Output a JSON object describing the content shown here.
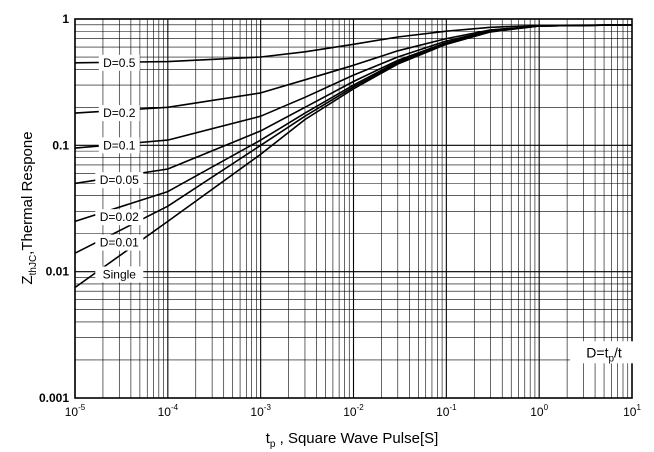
{
  "chart_data": {
    "type": "line",
    "title": "",
    "xlabel_main": "t",
    "xlabel_sub": "p",
    "xlabel_rest": " ,  Square Wave Pulse[S]",
    "ylabel_main": "Z",
    "ylabel_sub": "thJC",
    "ylabel_rest": ",Thermal Respone",
    "xscale": "log",
    "yscale": "log",
    "xlim": [
      1e-05,
      10
    ],
    "ylim": [
      0.001,
      1
    ],
    "grid": true,
    "x_ticks": [
      {
        "base": "10",
        "exp": "-5",
        "value": 1e-05
      },
      {
        "base": "10",
        "exp": "-4",
        "value": 0.0001
      },
      {
        "base": "10",
        "exp": "-3",
        "value": 0.001
      },
      {
        "base": "10",
        "exp": "-2",
        "value": 0.01
      },
      {
        "base": "10",
        "exp": "-1",
        "value": 0.1
      },
      {
        "base": "10",
        "exp": "0",
        "value": 1
      },
      {
        "base": "10",
        "exp": "1",
        "value": 10
      }
    ],
    "y_ticks": [
      {
        "label": "1",
        "value": 1
      },
      {
        "label": "0.1",
        "value": 0.1
      },
      {
        "label": "0.01",
        "value": 0.01
      },
      {
        "label": "0.001",
        "value": 0.001
      }
    ],
    "annotation": {
      "main": "D=t",
      "sub": "p",
      "rest": "/t",
      "x": 5,
      "y": 0.0023
    },
    "series": [
      {
        "name": "D=0.5",
        "label_at": {
          "x": 3e-05,
          "y": 0.45
        },
        "points": [
          [
            1e-05,
            0.45
          ],
          [
            0.0001,
            0.46
          ],
          [
            0.001,
            0.5
          ],
          [
            0.003,
            0.55
          ],
          [
            0.01,
            0.63
          ],
          [
            0.03,
            0.72
          ],
          [
            0.1,
            0.8
          ],
          [
            0.3,
            0.86
          ],
          [
            1,
            0.89
          ],
          [
            10,
            0.9
          ]
        ]
      },
      {
        "name": "D=0.2",
        "label_at": {
          "x": 3e-05,
          "y": 0.18
        },
        "points": [
          [
            1e-05,
            0.18
          ],
          [
            0.0001,
            0.2
          ],
          [
            0.001,
            0.26
          ],
          [
            0.003,
            0.33
          ],
          [
            0.01,
            0.43
          ],
          [
            0.03,
            0.56
          ],
          [
            0.1,
            0.7
          ],
          [
            0.3,
            0.82
          ],
          [
            1,
            0.88
          ],
          [
            10,
            0.9
          ]
        ]
      },
      {
        "name": "D=0.1",
        "label_at": {
          "x": 3e-05,
          "y": 0.1
        },
        "points": [
          [
            1e-05,
            0.095
          ],
          [
            0.0001,
            0.11
          ],
          [
            0.001,
            0.17
          ],
          [
            0.003,
            0.24
          ],
          [
            0.01,
            0.36
          ],
          [
            0.03,
            0.5
          ],
          [
            0.1,
            0.67
          ],
          [
            0.3,
            0.81
          ],
          [
            1,
            0.88
          ],
          [
            10,
            0.9
          ]
        ]
      },
      {
        "name": "D=0.05",
        "label_at": {
          "x": 3e-05,
          "y": 0.053
        },
        "points": [
          [
            1e-05,
            0.05
          ],
          [
            0.0001,
            0.065
          ],
          [
            0.001,
            0.13
          ],
          [
            0.003,
            0.2
          ],
          [
            0.01,
            0.32
          ],
          [
            0.03,
            0.47
          ],
          [
            0.1,
            0.65
          ],
          [
            0.3,
            0.8
          ],
          [
            1,
            0.88
          ],
          [
            10,
            0.9
          ]
        ]
      },
      {
        "name": "D=0.02",
        "label_at": {
          "x": 3e-05,
          "y": 0.027
        },
        "points": [
          [
            1e-05,
            0.025
          ],
          [
            0.0001,
            0.043
          ],
          [
            0.001,
            0.11
          ],
          [
            0.003,
            0.18
          ],
          [
            0.01,
            0.3
          ],
          [
            0.03,
            0.46
          ],
          [
            0.1,
            0.64
          ],
          [
            0.3,
            0.8
          ],
          [
            1,
            0.88
          ],
          [
            10,
            0.9
          ]
        ]
      },
      {
        "name": "D=0.01",
        "label_at": {
          "x": 3e-05,
          "y": 0.017
        },
        "points": [
          [
            1e-05,
            0.014
          ],
          [
            0.0001,
            0.033
          ],
          [
            0.001,
            0.1
          ],
          [
            0.003,
            0.17
          ],
          [
            0.01,
            0.29
          ],
          [
            0.03,
            0.45
          ],
          [
            0.1,
            0.64
          ],
          [
            0.3,
            0.8
          ],
          [
            1,
            0.88
          ],
          [
            10,
            0.9
          ]
        ]
      },
      {
        "name": "Single",
        "label_at": {
          "x": 3e-05,
          "y": 0.0095
        },
        "points": [
          [
            1e-05,
            0.0075
          ],
          [
            0.0001,
            0.025
          ],
          [
            0.001,
            0.085
          ],
          [
            0.003,
            0.16
          ],
          [
            0.01,
            0.28
          ],
          [
            0.03,
            0.44
          ],
          [
            0.1,
            0.63
          ],
          [
            0.3,
            0.79
          ],
          [
            1,
            0.88
          ],
          [
            10,
            0.9
          ]
        ]
      }
    ]
  }
}
